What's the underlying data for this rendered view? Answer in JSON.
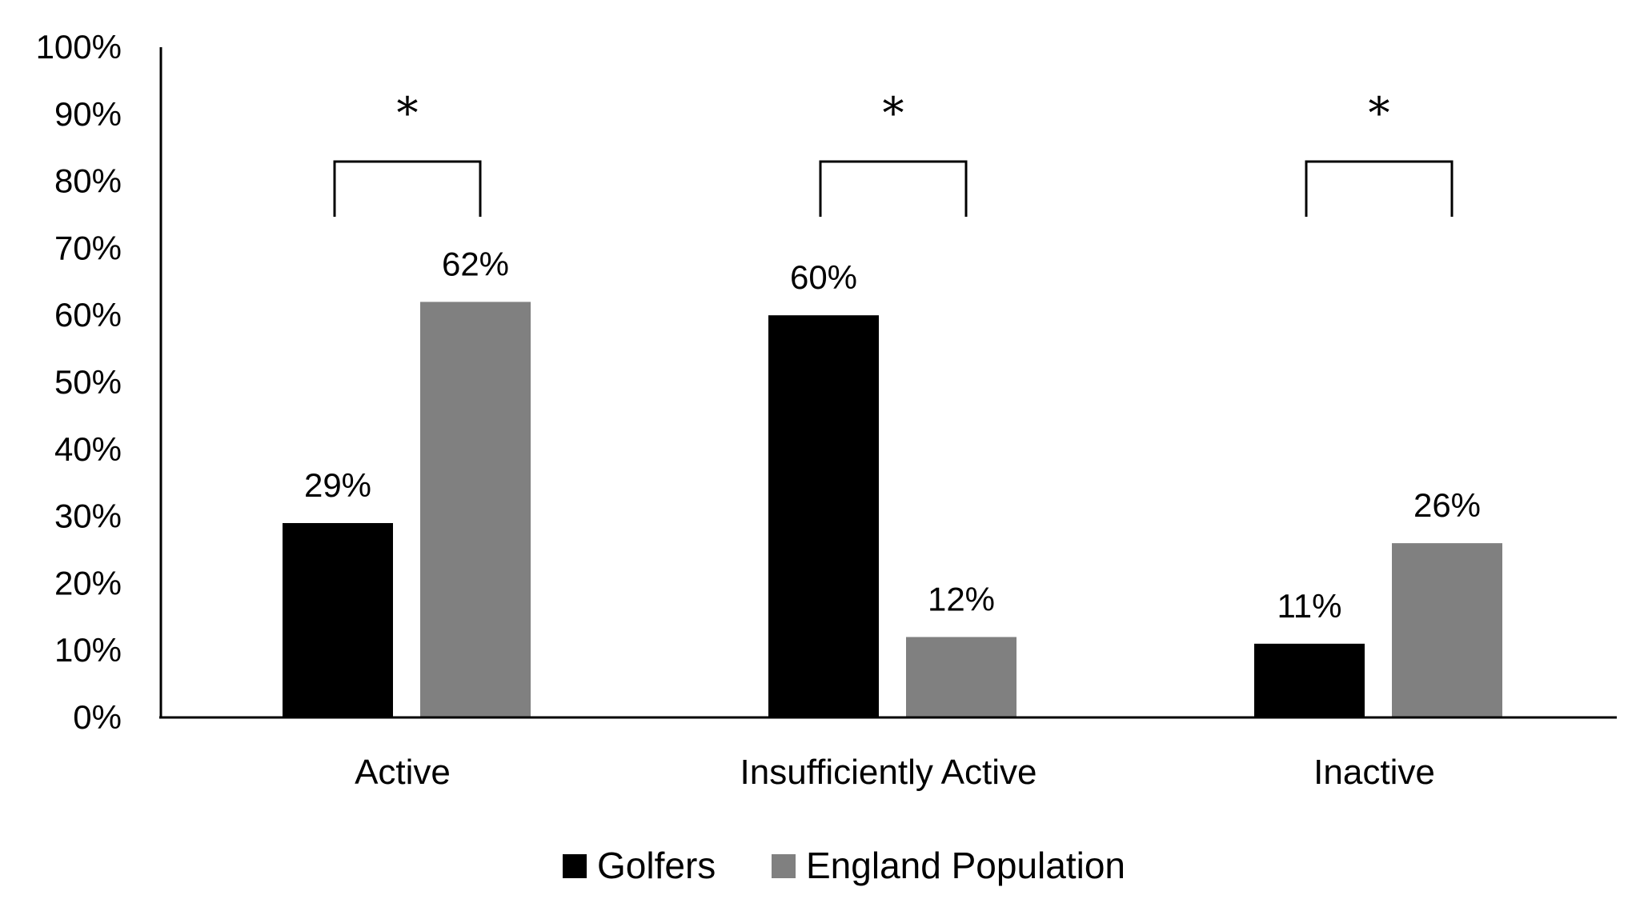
{
  "chart_data": {
    "type": "bar",
    "categories": [
      "Active",
      "Insufficiently Active",
      "Inactive"
    ],
    "series": [
      {
        "name": "Golfers",
        "values": [
          29,
          60,
          11
        ],
        "color": "#000000"
      },
      {
        "name": "England Population",
        "values": [
          62,
          12,
          26
        ],
        "color": "#808080"
      }
    ],
    "data_labels": [
      [
        "29%",
        "60%",
        "11%"
      ],
      [
        "62%",
        "12%",
        "26%"
      ]
    ],
    "y_tick_labels": [
      "0%",
      "10%",
      "20%",
      "30%",
      "40%",
      "50%",
      "60%",
      "70%",
      "80%",
      "90%",
      "100%"
    ],
    "ylim": [
      0,
      100
    ],
    "significance_markers": [
      "*",
      "*",
      "*"
    ],
    "title": "",
    "xlabel": "",
    "ylabel": "",
    "grid": false,
    "legend_position": "bottom"
  }
}
